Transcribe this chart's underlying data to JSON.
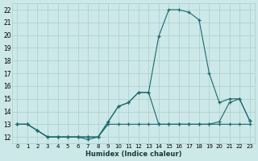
{
  "xlabel": "Humidex (Indice chaleur)",
  "x_ticks": [
    0,
    1,
    2,
    3,
    4,
    5,
    6,
    7,
    8,
    9,
    10,
    11,
    12,
    13,
    14,
    15,
    16,
    17,
    18,
    19,
    20,
    21,
    22,
    23
  ],
  "ylim": [
    11.5,
    22.5
  ],
  "xlim": [
    -0.5,
    23.5
  ],
  "y_ticks": [
    12,
    13,
    14,
    15,
    16,
    17,
    18,
    19,
    20,
    21,
    22
  ],
  "bg_color": "#cce8e8",
  "grid_color": "#aacece",
  "line_color": "#1a6b6b",
  "series1_x": [
    0,
    1,
    2,
    3,
    4,
    5,
    6,
    7,
    8,
    9,
    10,
    11,
    12,
    13,
    14,
    15,
    16,
    17,
    18,
    19,
    20,
    21,
    22,
    23
  ],
  "series1_y": [
    13.0,
    13.0,
    12.5,
    12.0,
    12.0,
    12.0,
    12.0,
    11.8,
    12.0,
    13.0,
    13.0,
    13.0,
    13.0,
    13.0,
    13.0,
    13.0,
    13.0,
    13.0,
    13.0,
    13.0,
    13.0,
    13.0,
    13.0,
    13.0
  ],
  "series2_x": [
    0,
    1,
    2,
    3,
    4,
    5,
    6,
    7,
    8,
    9,
    10,
    11,
    12,
    13,
    14,
    15,
    16,
    17,
    18,
    19,
    20,
    21,
    22,
    23
  ],
  "series2_y": [
    13.0,
    13.0,
    12.5,
    12.0,
    12.0,
    12.0,
    12.0,
    12.0,
    12.0,
    13.2,
    14.4,
    14.7,
    15.5,
    15.5,
    19.9,
    22.0,
    22.0,
    21.8,
    21.2,
    17.0,
    14.7,
    15.0,
    15.0,
    13.3
  ],
  "series3_x": [
    0,
    1,
    2,
    3,
    4,
    5,
    6,
    7,
    8,
    9,
    10,
    11,
    12,
    13,
    14,
    15,
    16,
    17,
    18,
    19,
    20,
    21,
    22,
    23
  ],
  "series3_y": [
    13.0,
    13.0,
    12.5,
    12.0,
    12.0,
    12.0,
    12.0,
    12.0,
    12.0,
    13.2,
    14.4,
    14.7,
    15.5,
    15.5,
    13.0,
    13.0,
    13.0,
    13.0,
    13.0,
    13.0,
    13.2,
    14.7,
    15.0,
    13.3
  ]
}
